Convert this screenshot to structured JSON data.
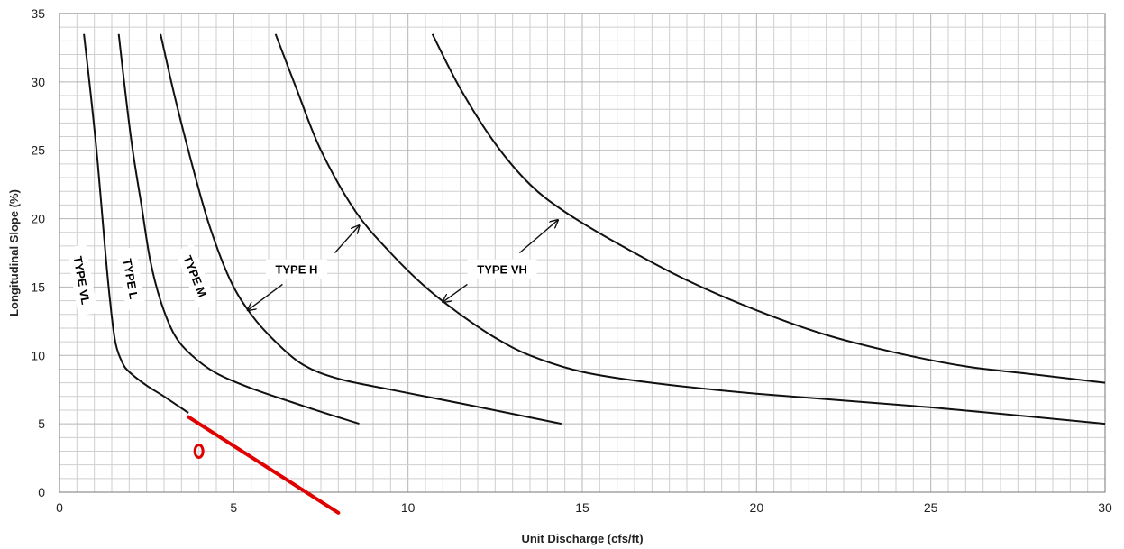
{
  "chart_data": {
    "type": "line",
    "xlabel": "Unit Discharge (cfs/ft)",
    "ylabel": "Longitudinal Slope (%)",
    "xlim": [
      0,
      30
    ],
    "ylim": [
      0,
      35
    ],
    "x_ticks": [
      0,
      5,
      10,
      15,
      20,
      25,
      30
    ],
    "y_ticks": [
      0,
      5,
      10,
      15,
      20,
      25,
      30,
      35
    ],
    "grid": true,
    "series": [
      {
        "name": "TYPE VL",
        "color": "#111111",
        "points": [
          [
            0.7,
            33.5
          ],
          [
            0.9,
            29
          ],
          [
            1.1,
            24
          ],
          [
            1.3,
            18
          ],
          [
            1.45,
            14
          ],
          [
            1.6,
            11
          ],
          [
            1.8,
            9.5
          ],
          [
            2.0,
            8.8
          ],
          [
            2.5,
            7.8
          ],
          [
            3.0,
            7.0
          ],
          [
            3.7,
            5.8
          ]
        ]
      },
      {
        "name": "TYPE L",
        "color": "#111111",
        "points": [
          [
            1.7,
            33.5
          ],
          [
            1.9,
            29
          ],
          [
            2.1,
            25
          ],
          [
            2.35,
            21
          ],
          [
            2.6,
            17
          ],
          [
            2.9,
            14
          ],
          [
            3.3,
            11.5
          ],
          [
            3.8,
            10
          ],
          [
            4.5,
            8.7
          ],
          [
            5.5,
            7.6
          ],
          [
            7.0,
            6.3
          ],
          [
            8.6,
            5.0
          ]
        ]
      },
      {
        "name": "TYPE M",
        "color": "#111111",
        "points": [
          [
            2.9,
            33.5
          ],
          [
            3.3,
            29
          ],
          [
            3.8,
            24
          ],
          [
            4.3,
            19.5
          ],
          [
            4.9,
            15.5
          ],
          [
            5.5,
            13
          ],
          [
            6.2,
            11
          ],
          [
            7.0,
            9.3
          ],
          [
            8.0,
            8.3
          ],
          [
            9.5,
            7.5
          ],
          [
            11.5,
            6.5
          ],
          [
            14.4,
            5.0
          ]
        ]
      },
      {
        "name": "TYPE H",
        "color": "#111111",
        "points": [
          [
            6.2,
            33.5
          ],
          [
            6.8,
            29.5
          ],
          [
            7.5,
            25
          ],
          [
            8.5,
            20.5
          ],
          [
            9.5,
            17.5
          ],
          [
            10.5,
            15
          ],
          [
            11.5,
            13
          ],
          [
            12.5,
            11.3
          ],
          [
            13.5,
            10
          ],
          [
            15,
            8.8
          ],
          [
            17,
            8.0
          ],
          [
            20,
            7.2
          ],
          [
            25,
            6.2
          ],
          [
            30,
            5.0
          ]
        ]
      },
      {
        "name": "TYPE VH",
        "color": "#111111",
        "points": [
          [
            10.7,
            33.5
          ],
          [
            11.5,
            29.5
          ],
          [
            12.5,
            25.5
          ],
          [
            13.5,
            22.5
          ],
          [
            14.5,
            20.5
          ],
          [
            16,
            18.2
          ],
          [
            18,
            15.5
          ],
          [
            20,
            13.3
          ],
          [
            22,
            11.5
          ],
          [
            24,
            10.2
          ],
          [
            26,
            9.2
          ],
          [
            28,
            8.6
          ],
          [
            30,
            8.0
          ]
        ]
      }
    ],
    "annotations": [
      {
        "text": "TYPE VL",
        "x": 0.65,
        "y": 15.5,
        "rotate": 80
      },
      {
        "text": "TYPE L",
        "x": 2.05,
        "y": 15.6,
        "rotate": 80
      },
      {
        "text": "TYPE M",
        "x": 3.9,
        "y": 15.8,
        "rotate": 68
      },
      {
        "text": "TYPE H",
        "x": 6.8,
        "y": 16.3,
        "rotate": 0
      },
      {
        "text": "TYPE VH",
        "x": 12.7,
        "y": 16.3,
        "rotate": 0
      }
    ],
    "arrows": [
      {
        "from": [
          7.9,
          17.5
        ],
        "to": [
          8.6,
          19.5
        ]
      },
      {
        "from": [
          6.4,
          15.2
        ],
        "to": [
          5.4,
          13.3
        ]
      },
      {
        "from": [
          13.2,
          17.5
        ],
        "to": [
          14.3,
          19.9
        ]
      },
      {
        "from": [
          11.7,
          15.2
        ],
        "to": [
          11.0,
          13.9
        ]
      }
    ],
    "markup": {
      "red_line": {
        "color": "#e00000",
        "from": [
          3.7,
          5.5
        ],
        "to": [
          8.0,
          -1.5
        ]
      },
      "red_marker": {
        "color": "#e00000",
        "x": 4.0,
        "y": 3.0
      }
    }
  }
}
